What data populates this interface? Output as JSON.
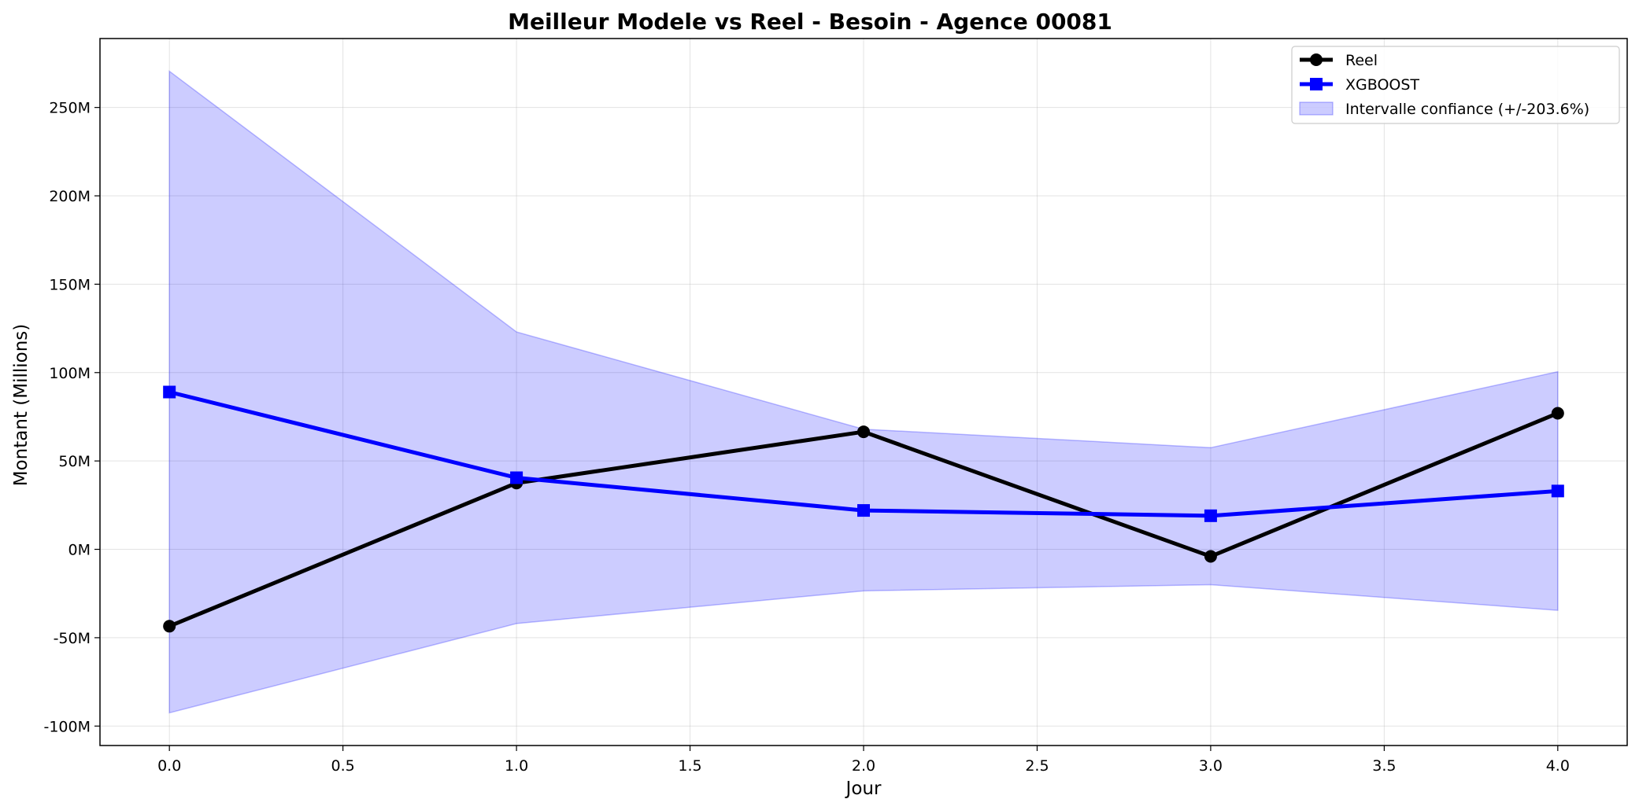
{
  "chart_data": {
    "type": "line",
    "title": "Meilleur Modele vs Reel - Besoin - Agence 00081",
    "xlabel": "Jour",
    "ylabel": "Montant (Millions)",
    "x": [
      0.0,
      1.0,
      2.0,
      3.0,
      4.0
    ],
    "xlim": [
      -0.2,
      4.2
    ],
    "ylim": [
      -111,
      289
    ],
    "x_ticks": [
      0.0,
      0.5,
      1.0,
      1.5,
      2.0,
      2.5,
      3.0,
      3.5,
      4.0
    ],
    "x_tick_labels": [
      "0.0",
      "0.5",
      "1.0",
      "1.5",
      "2.0",
      "2.5",
      "3.0",
      "3.5",
      "4.0"
    ],
    "y_ticks": [
      -100,
      -50,
      0,
      50,
      100,
      150,
      200,
      250
    ],
    "y_tick_labels": [
      "-100M",
      "-50M",
      "0M",
      "50M",
      "100M",
      "150M",
      "200M",
      "250M"
    ],
    "grid": true,
    "legend_position": "top-right",
    "series": [
      {
        "name": "Reel",
        "values": [
          -43.5,
          37.5,
          66.5,
          -4.0,
          77.0
        ],
        "color": "#000000",
        "marker": "circle"
      },
      {
        "name": "XGBOOST",
        "values": [
          89.0,
          40.5,
          22.0,
          19.0,
          33.0
        ],
        "color": "#0000ff",
        "marker": "square"
      }
    ],
    "band": {
      "name": "Intervalle confiance (+/-203.6%)",
      "upper": [
        270.5,
        123.0,
        68.0,
        57.5,
        100.5
      ],
      "lower": [
        -92.5,
        -42.0,
        -23.5,
        -20.0,
        -34.5
      ],
      "color": "#0000ff"
    }
  }
}
